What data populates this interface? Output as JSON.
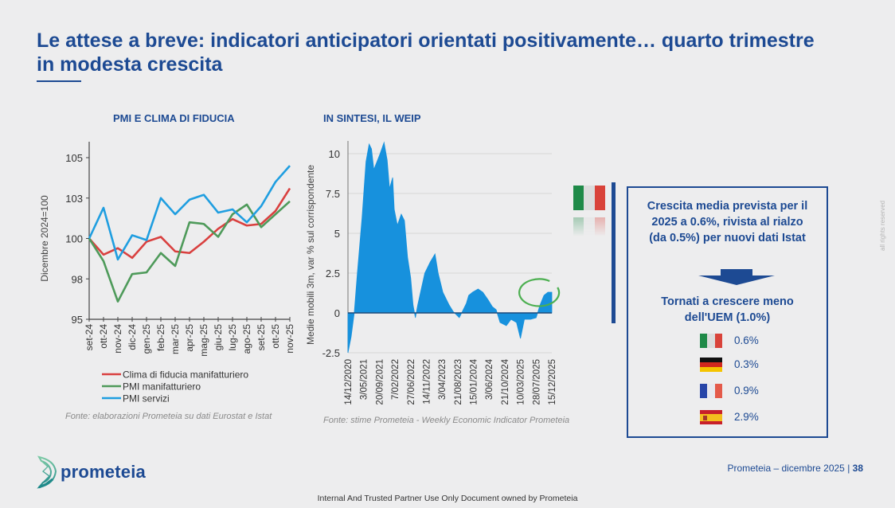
{
  "header": {
    "title": "Le attese a breve: indicatori anticipatori orientati positivamente… quarto trimestre in modesta crescita"
  },
  "chart_data": [
    {
      "type": "line",
      "title": "PMI E CLIMA DI FIDUCIA",
      "xlabel": "",
      "ylabel": "Dicembre 2024=100",
      "ylim": [
        95,
        105
      ],
      "yticks": [
        95,
        97.5,
        100,
        102.5,
        105
      ],
      "ytick_labels": [
        "95",
        "98",
        "100",
        "103",
        "105"
      ],
      "grid": false,
      "legend_position": "bottom",
      "categories": [
        "set-24",
        "ott-24",
        "nov-24",
        "dic-24",
        "gen-25",
        "feb-25",
        "mar-25",
        "apr-25",
        "mag-25",
        "giu-25",
        "lug-25",
        "ago-25",
        "set-25",
        "ott-25",
        "nov-25"
      ],
      "series": [
        {
          "name": "Clima di fiducia manifatturiero",
          "color": "#d9403f",
          "values": [
            100,
            99.0,
            99.4,
            98.8,
            99.8,
            100.1,
            99.2,
            99.1,
            99.8,
            100.6,
            101.2,
            100.8,
            100.9,
            101.7,
            103.1
          ]
        },
        {
          "name": "PMI manifatturiero",
          "color": "#4e9a5a",
          "values": [
            100,
            98.6,
            96.1,
            97.8,
            97.9,
            99.1,
            98.3,
            101.0,
            100.9,
            100.1,
            101.5,
            102.1,
            100.7,
            101.5,
            102.3
          ]
        },
        {
          "name": "PMI servizi",
          "color": "#1f9ee0",
          "values": [
            100,
            101.9,
            98.7,
            100.2,
            99.9,
            102.5,
            101.5,
            102.4,
            102.7,
            101.6,
            101.8,
            101.0,
            102.0,
            103.5,
            104.5
          ]
        }
      ],
      "source": "Fonte: elaborazioni Prometeia su dati Eurostat e Istat"
    },
    {
      "type": "area",
      "title": "IN SINTESI, IL WEIP",
      "xlabel": "",
      "ylabel": "Medie mobili 3m, var % sul corrispondente",
      "ylim": [
        -2.5,
        10.8
      ],
      "yticks": [
        -2.5,
        0,
        2.5,
        5,
        7.5,
        10
      ],
      "ytick_labels": [
        "-2.5",
        "0",
        "2.5",
        "5",
        "7.5",
        "10"
      ],
      "grid": true,
      "xtick_labels": [
        "14/12/2020",
        "3/05/2021",
        "20/09/2021",
        "7/02/2022",
        "27/06/2022",
        "14/11/2022",
        "3/04/2023",
        "21/08/2023",
        "15/01/2024",
        "3/06/2024",
        "21/10/2024",
        "10/03/2025",
        "28/07/2025",
        "15/12/2025"
      ],
      "x_unit": "weeks since 14/12/2020",
      "xlim": [
        0,
        260
      ],
      "color": "#1791dd",
      "highlight": {
        "label": "latest weeks circled",
        "color": "#4caf50",
        "x_range": [
          230,
          260
        ]
      },
      "points": [
        [
          0,
          -2.5
        ],
        [
          4,
          -1.5
        ],
        [
          8,
          0
        ],
        [
          12,
          2.5
        ],
        [
          18,
          6
        ],
        [
          23,
          9.5
        ],
        [
          27,
          10.6
        ],
        [
          30,
          10.3
        ],
        [
          33,
          9.0
        ],
        [
          37,
          9.5
        ],
        [
          41,
          10.0
        ],
        [
          46,
          10.7
        ],
        [
          50,
          9.6
        ],
        [
          53,
          7.8
        ],
        [
          57,
          8.5
        ],
        [
          59,
          6.5
        ],
        [
          63,
          5.5
        ],
        [
          68,
          6.2
        ],
        [
          72,
          5.8
        ],
        [
          76,
          3.5
        ],
        [
          80,
          2.2
        ],
        [
          83,
          0.5
        ],
        [
          86,
          -0.3
        ],
        [
          89,
          0.5
        ],
        [
          98,
          2.5
        ],
        [
          105,
          3.2
        ],
        [
          111,
          3.7
        ],
        [
          115,
          2.5
        ],
        [
          121,
          1.3
        ],
        [
          129,
          0.5
        ],
        [
          134,
          0.1
        ],
        [
          142,
          -0.3
        ],
        [
          151,
          0.6
        ],
        [
          154,
          1.1
        ],
        [
          159,
          1.3
        ],
        [
          166,
          1.5
        ],
        [
          172,
          1.3
        ],
        [
          179,
          0.8
        ],
        [
          184,
          0.4
        ],
        [
          189,
          0.2
        ],
        [
          194,
          -0.6
        ],
        [
          202,
          -0.8
        ],
        [
          208,
          -0.4
        ],
        [
          215,
          -0.6
        ],
        [
          220,
          -1.6
        ],
        [
          225,
          -0.4
        ],
        [
          233,
          -0.4
        ],
        [
          240,
          -0.3
        ],
        [
          245,
          0.5
        ],
        [
          250,
          1.1
        ],
        [
          255,
          1.3
        ],
        [
          260,
          1.3
        ]
      ],
      "source": "Fonte: stime Prometeia - Weekly Economic Indicator Prometeia"
    }
  ],
  "summary_box": {
    "headline": "Crescita media prevista per il 2025 a 0.6%, rivista al rialzo (da 0.5%) per nuovi dati Istat",
    "subheadline": "Tornati a crescere meno dell'UEM  (1.0%)",
    "countries": [
      {
        "name": "Italia",
        "flag": "italy-flag",
        "value": "0.6%"
      },
      {
        "name": "Germania",
        "flag": "germany-flag",
        "value": "0.3%"
      },
      {
        "name": "Francia",
        "flag": "france-flag",
        "value": "0.9%"
      },
      {
        "name": "Spagna",
        "flag": "spain-flag",
        "value": "2.9%"
      }
    ]
  },
  "footer": {
    "brand": "prometeia",
    "page_info": "Prometeia – dicembre 2025 | ",
    "page_number": "38",
    "confidentiality": "Internal And Trusted Partner Use Only Document owned by Prometeia",
    "rights": "all rights reserved"
  }
}
